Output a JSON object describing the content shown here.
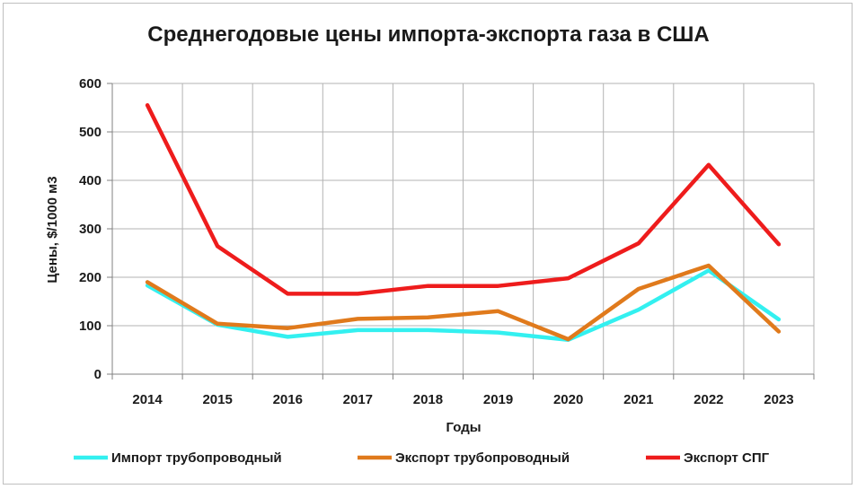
{
  "chart_data": {
    "type": "line",
    "title": "Среднегодовые цены импорта-экспорта газа в США",
    "xlabel": "Годы",
    "ylabel": "Цены, $/1000 м3",
    "ylim": [
      0,
      600
    ],
    "yticks": [
      0,
      100,
      200,
      300,
      400,
      500,
      600
    ],
    "grid": true,
    "legend_position": "bottom",
    "categories": [
      "2014",
      "2015",
      "2016",
      "2017",
      "2018",
      "2019",
      "2020",
      "2021",
      "2022",
      "2023"
    ],
    "series": [
      {
        "name": "Импорт трубопроводный",
        "color": "#33f0f0",
        "values": [
          183,
          102,
          77,
          91,
          91,
          86,
          71,
          133,
          214,
          113
        ]
      },
      {
        "name": "Экспорт трубопроводный",
        "color": "#e07a1c",
        "values": [
          190,
          104,
          95,
          114,
          117,
          130,
          72,
          176,
          224,
          88
        ]
      },
      {
        "name": "Экспорт СПГ",
        "color": "#ee1c1c",
        "values": [
          555,
          264,
          166,
          166,
          182,
          182,
          198,
          270,
          432,
          268
        ]
      }
    ]
  }
}
